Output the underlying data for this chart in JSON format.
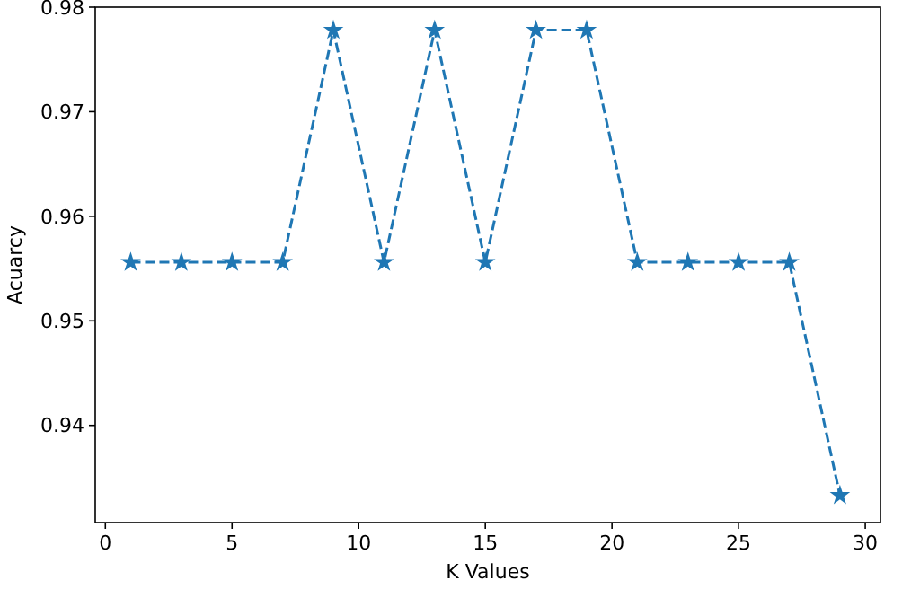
{
  "chart_data": {
    "type": "line",
    "xlabel": "K Values",
    "ylabel": "Acuarcy",
    "x": [
      1,
      3,
      5,
      7,
      9,
      11,
      13,
      15,
      17,
      19,
      21,
      23,
      25,
      27,
      29
    ],
    "series": [
      {
        "color": "#1f77b4",
        "values": [
          0.9556,
          0.9556,
          0.9556,
          0.9556,
          0.9778,
          0.9556,
          0.9778,
          0.9556,
          0.9778,
          0.9778,
          0.9556,
          0.9556,
          0.9556,
          0.9556,
          0.9333
        ]
      }
    ],
    "xlim": [
      -0.4,
      30.6
    ],
    "xticks": [
      0,
      5,
      10,
      15,
      20,
      25,
      30
    ],
    "ylim": [
      0.9307,
      0.98
    ],
    "yticks": [
      0.94,
      0.95,
      0.96,
      0.97,
      0.98
    ],
    "marker": "star",
    "line_style": "dashed",
    "grid": false
  }
}
